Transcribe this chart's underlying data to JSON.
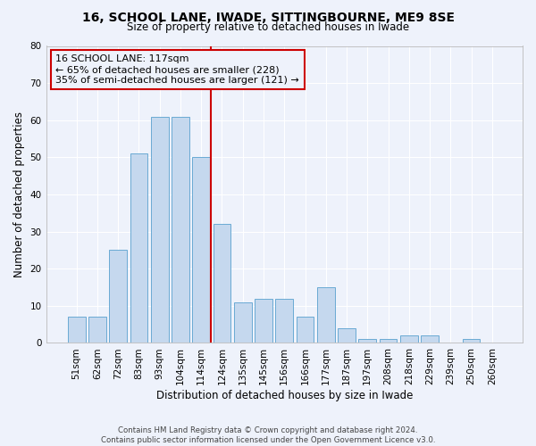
{
  "title": "16, SCHOOL LANE, IWADE, SITTINGBOURNE, ME9 8SE",
  "subtitle": "Size of property relative to detached houses in Iwade",
  "xlabel": "Distribution of detached houses by size in Iwade",
  "ylabel": "Number of detached properties",
  "categories": [
    "51sqm",
    "62sqm",
    "72sqm",
    "83sqm",
    "93sqm",
    "104sqm",
    "114sqm",
    "124sqm",
    "135sqm",
    "145sqm",
    "156sqm",
    "166sqm",
    "177sqm",
    "187sqm",
    "197sqm",
    "208sqm",
    "218sqm",
    "229sqm",
    "239sqm",
    "250sqm",
    "260sqm"
  ],
  "values": [
    7,
    7,
    25,
    51,
    61,
    61,
    50,
    32,
    11,
    12,
    12,
    7,
    15,
    4,
    1,
    1,
    2,
    2,
    0,
    1,
    0
  ],
  "bar_color": "#c5d8ee",
  "bar_edge_color": "#6aaad4",
  "background_color": "#eef2fb",
  "grid_color": "#ffffff",
  "property_line_x": 6.45,
  "property_line_color": "#cc0000",
  "ann_line1": "16 SCHOOL LANE: 117sqm",
  "ann_line2": "← 65% of detached houses are smaller (228)",
  "ann_line3": "35% of semi-detached houses are larger (121) →",
  "annotation_box_color": "#cc0000",
  "footer_line1": "Contains HM Land Registry data © Crown copyright and database right 2024.",
  "footer_line2": "Contains public sector information licensed under the Open Government Licence v3.0.",
  "ylim": [
    0,
    80
  ],
  "yticks": [
    0,
    10,
    20,
    30,
    40,
    50,
    60,
    70,
    80
  ]
}
